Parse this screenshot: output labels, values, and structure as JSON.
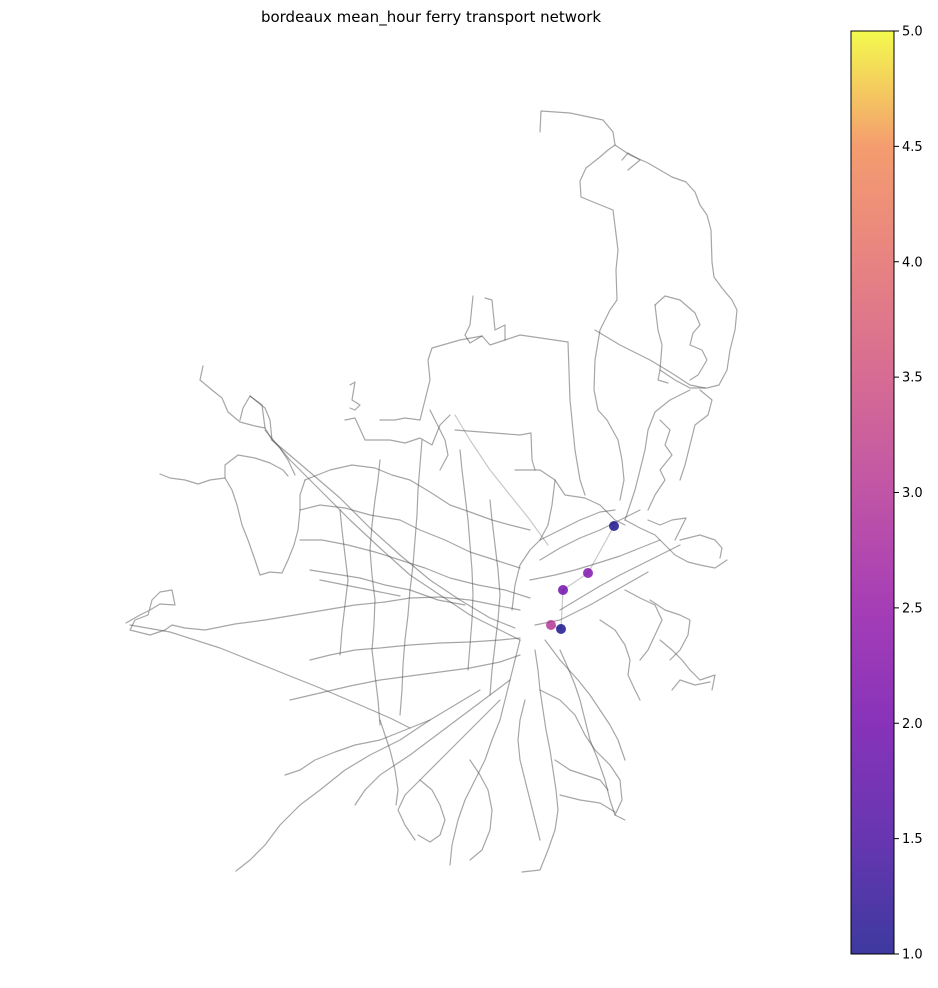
{
  "chart_data": {
    "type": "scatter",
    "title": "bordeaux mean_hour ferry transport network",
    "colormap": "plasma",
    "colorbar": {
      "range": [
        1.0,
        5.0
      ],
      "ticks": [
        "1.0",
        "1.5",
        "2.0",
        "2.5",
        "3.0",
        "3.5",
        "4.0",
        "4.5",
        "5.0"
      ]
    },
    "stops": [
      {
        "value": 1.0
      },
      {
        "value": 1.0
      },
      {
        "value": 2.0
      },
      {
        "value": 2.2
      },
      {
        "value": 3.0
      }
    ],
    "background_network_color": "#4d4d4d",
    "grid": false
  }
}
